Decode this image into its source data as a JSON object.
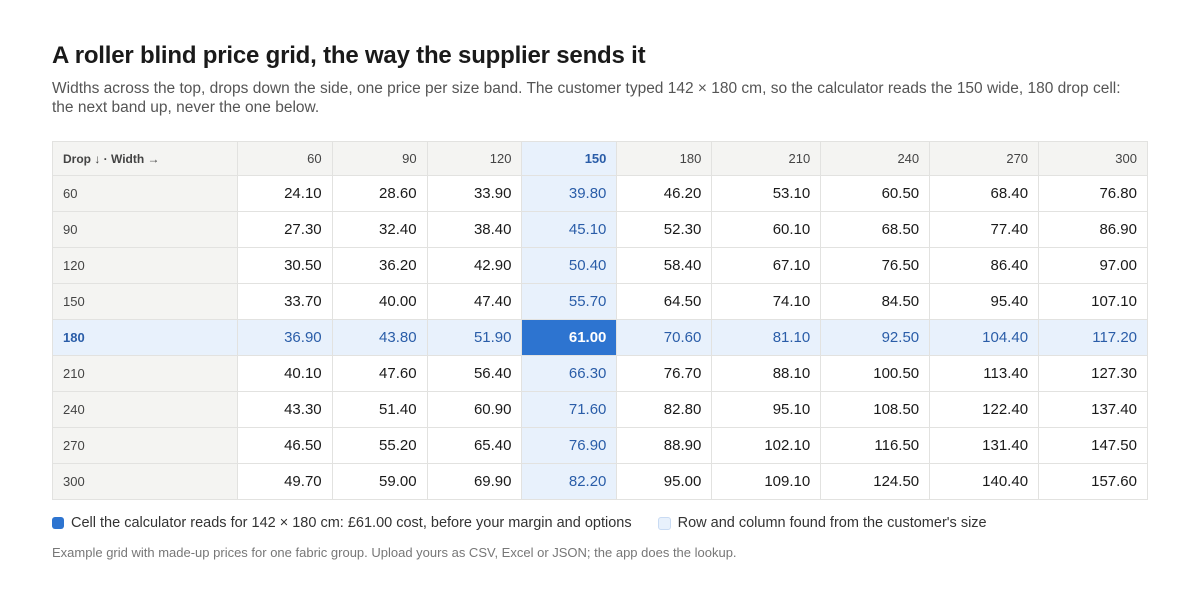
{
  "header": {
    "title": "A roller blind price grid, the way the supplier sends it",
    "subtitle": "Widths across the top, drops down the side, one price per size band. The customer typed 142 × 180 cm, so the calculator reads the 150 wide, 180 drop cell: the next band up, never the one below."
  },
  "table": {
    "corner": "Drop ↓ · Width →",
    "columns": [
      "60",
      "90",
      "120",
      "150",
      "180",
      "210",
      "240",
      "270",
      "300"
    ],
    "rows": [
      {
        "label": "60",
        "cells": [
          "24.10",
          "28.60",
          "33.90",
          "39.80",
          "46.20",
          "53.10",
          "60.50",
          "68.40",
          "76.80"
        ]
      },
      {
        "label": "90",
        "cells": [
          "27.30",
          "32.40",
          "38.40",
          "45.10",
          "52.30",
          "60.10",
          "68.50",
          "77.40",
          "86.90"
        ]
      },
      {
        "label": "120",
        "cells": [
          "30.50",
          "36.20",
          "42.90",
          "50.40",
          "58.40",
          "67.10",
          "76.50",
          "86.40",
          "97.00"
        ]
      },
      {
        "label": "150",
        "cells": [
          "33.70",
          "40.00",
          "47.40",
          "55.70",
          "64.50",
          "74.10",
          "84.50",
          "95.40",
          "107.10"
        ]
      },
      {
        "label": "180",
        "cells": [
          "36.90",
          "43.80",
          "51.90",
          "61.00",
          "70.60",
          "81.10",
          "92.50",
          "104.40",
          "117.20"
        ]
      },
      {
        "label": "210",
        "cells": [
          "40.10",
          "47.60",
          "56.40",
          "66.30",
          "76.70",
          "88.10",
          "100.50",
          "113.40",
          "127.30"
        ]
      },
      {
        "label": "240",
        "cells": [
          "43.30",
          "51.40",
          "60.90",
          "71.60",
          "82.80",
          "95.10",
          "108.50",
          "122.40",
          "137.40"
        ]
      },
      {
        "label": "270",
        "cells": [
          "46.50",
          "55.20",
          "65.40",
          "76.90",
          "88.90",
          "102.10",
          "116.50",
          "131.40",
          "147.50"
        ]
      },
      {
        "label": "300",
        "cells": [
          "49.70",
          "59.00",
          "69.90",
          "82.20",
          "95.00",
          "109.10",
          "124.50",
          "140.40",
          "157.60"
        ]
      }
    ]
  },
  "legend": [
    {
      "label": "Cell the calculator reads for 142 × 180 cm: £61.00 cost, before your margin and options"
    },
    {
      "label": "Row and column found from the customer's size"
    }
  ],
  "footnote": "Example grid with made-up prices for one fabric group. Upload yours as CSV, Excel or JSON; the app does the lookup."
}
